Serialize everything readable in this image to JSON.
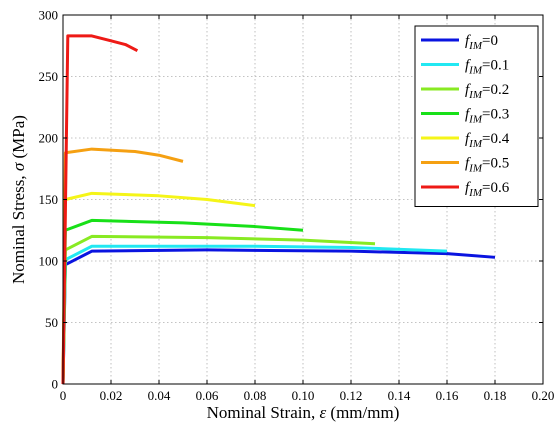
{
  "chart_data": {
    "type": "line",
    "xlabel_prefix": "Nominal Strain, ",
    "xlabel_symbol": "ε",
    "xlabel_suffix": " (mm/mm)",
    "ylabel_prefix": "Nominal Stress, ",
    "ylabel_symbol": "σ",
    "ylabel_suffix": " (MPa)",
    "xlim": [
      0,
      0.2
    ],
    "ylim": [
      0,
      300
    ],
    "x_ticks": [
      0,
      0.02,
      0.04,
      0.06,
      0.08,
      0.1,
      0.12,
      0.14,
      0.16,
      0.18,
      0.2
    ],
    "x_tick_labels": [
      "0",
      "0.02",
      "0.04",
      "0.06",
      "0.08",
      "0.10",
      "0.12",
      "0.14",
      "0.16",
      "0.18",
      "0.20"
    ],
    "y_ticks": [
      0,
      50,
      100,
      150,
      200,
      250,
      300
    ],
    "y_tick_labels": [
      "0",
      "50",
      "100",
      "150",
      "200",
      "250",
      "300"
    ],
    "grid": true,
    "legend_position": "top-right",
    "series": [
      {
        "name": "0",
        "color": "#0a14e0",
        "x": [
          0,
          0.001,
          0.012,
          0.06,
          0.12,
          0.16,
          0.18
        ],
        "y": [
          0,
          97,
          108,
          109,
          108,
          106,
          103
        ]
      },
      {
        "name": "0.1",
        "color": "#22e8f2",
        "x": [
          0,
          0.001,
          0.012,
          0.08,
          0.12,
          0.16
        ],
        "y": [
          0,
          101,
          112,
          112,
          111,
          108
        ]
      },
      {
        "name": "0.2",
        "color": "#88ea22",
        "x": [
          0,
          0.001,
          0.012,
          0.06,
          0.1,
          0.13
        ],
        "y": [
          0,
          109,
          120,
          119,
          117,
          114
        ]
      },
      {
        "name": "0.3",
        "color": "#18e018",
        "x": [
          0,
          0.001,
          0.012,
          0.05,
          0.08,
          0.1
        ],
        "y": [
          0,
          125,
          133,
          131,
          128,
          125
        ]
      },
      {
        "name": "0.4",
        "color": "#f5f518",
        "x": [
          0,
          0.001,
          0.012,
          0.04,
          0.06,
          0.08
        ],
        "y": [
          0,
          150,
          155,
          153,
          150,
          145
        ]
      },
      {
        "name": "0.5",
        "color": "#f5a012",
        "x": [
          0,
          0.001,
          0.012,
          0.03,
          0.04,
          0.05
        ],
        "y": [
          0,
          188,
          191,
          189,
          186,
          181
        ]
      },
      {
        "name": "0.6",
        "color": "#ee1a16",
        "x": [
          0,
          0.002,
          0.012,
          0.02,
          0.026,
          0.031
        ],
        "y": [
          0,
          283,
          283,
          279,
          276,
          271
        ]
      }
    ],
    "legend_symbol": "f",
    "legend_subscript": "IM",
    "legend_equals": "="
  }
}
